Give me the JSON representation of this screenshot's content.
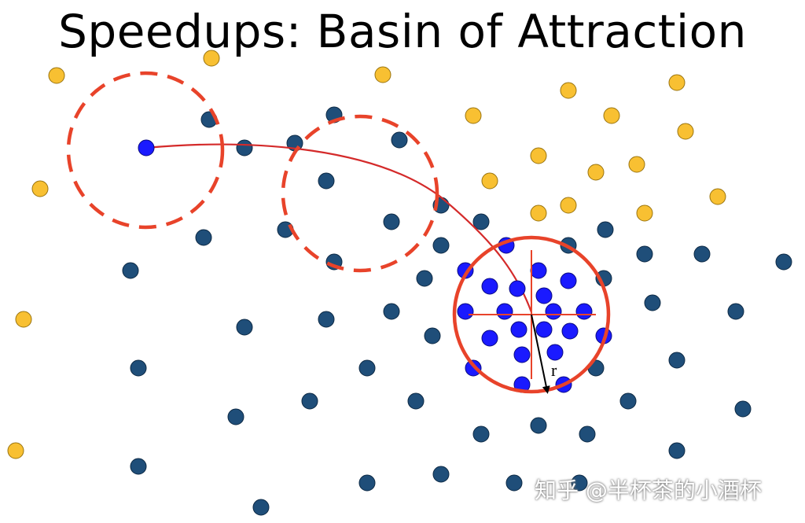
{
  "title": "Speedups: Basin of Attraction",
  "radius_label": "r",
  "watermark": "知乎 @半杯茶的小酒杯",
  "colors": {
    "background": "#ffffff",
    "yellow_point": "#f8c032",
    "navy_point": "#1f4e79",
    "blue_point": "#1a1aff",
    "red_circle": "#e8432a",
    "path": "#d42a2a",
    "arrow": "#000000"
  }
}
